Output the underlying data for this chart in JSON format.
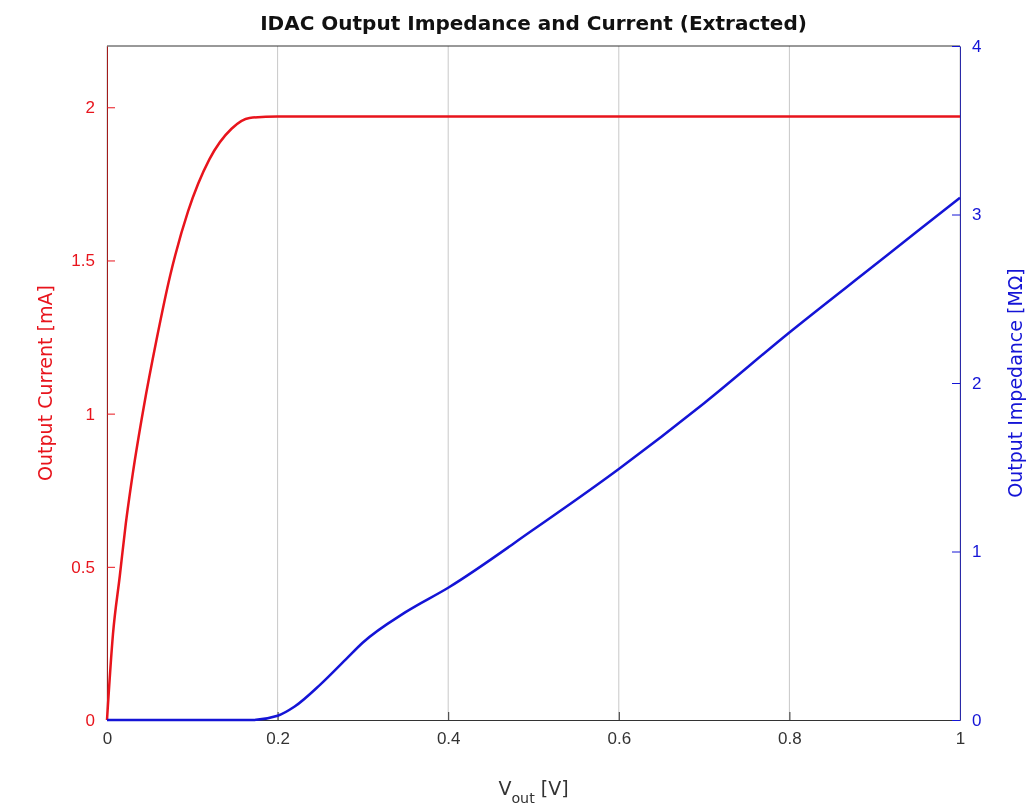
{
  "chart_data": {
    "type": "line",
    "title": "IDAC Output Impedance and Current (Extracted)",
    "xlabel": "V$_{out}$ [V]",
    "ylabel": "Output Current [mA]",
    "y2label": "Output Impedance [MΩ]",
    "xlim": [
      0,
      1
    ],
    "xticks": [
      0,
      0.2,
      0.4,
      0.6,
      0.8,
      1
    ],
    "ylim": [
      0,
      2.2
    ],
    "yticks": [
      0,
      0.5,
      1,
      1.5,
      2
    ],
    "y2lim": [
      0,
      4
    ],
    "y2ticks": [
      0,
      1,
      2,
      3,
      4
    ],
    "grid": "x",
    "marker": "none",
    "line_style": "solid",
    "series": [
      {
        "color": "#e8141c",
        "x": [
          0,
          0.007,
          0.015,
          0.022,
          0.03,
          0.043,
          0.058,
          0.074,
          0.095,
          0.12,
          0.146,
          0.167,
          0.2,
          0.4,
          0.6,
          0.8,
          1
        ],
        "values": [
          0,
          0.28,
          0.47,
          0.64,
          0.8,
          1.02,
          1.24,
          1.45,
          1.66,
          1.83,
          1.93,
          1.965,
          1.97,
          1.97,
          1.97,
          1.97,
          1.97
        ]
      },
      {
        "color": "#1414d6",
        "axis": "y2",
        "x": [
          0,
          0.1,
          0.17,
          0.2,
          0.22,
          0.25,
          0.28,
          0.3,
          0.35,
          0.4,
          0.5,
          0.6,
          0.7,
          0.8,
          0.9,
          1
        ],
        "values": [
          0,
          0,
          0,
          0.025,
          0.08,
          0.21,
          0.36,
          0.46,
          0.64,
          0.785,
          1.13,
          1.49,
          1.88,
          2.3,
          2.7,
          3.1
        ]
      }
    ]
  }
}
